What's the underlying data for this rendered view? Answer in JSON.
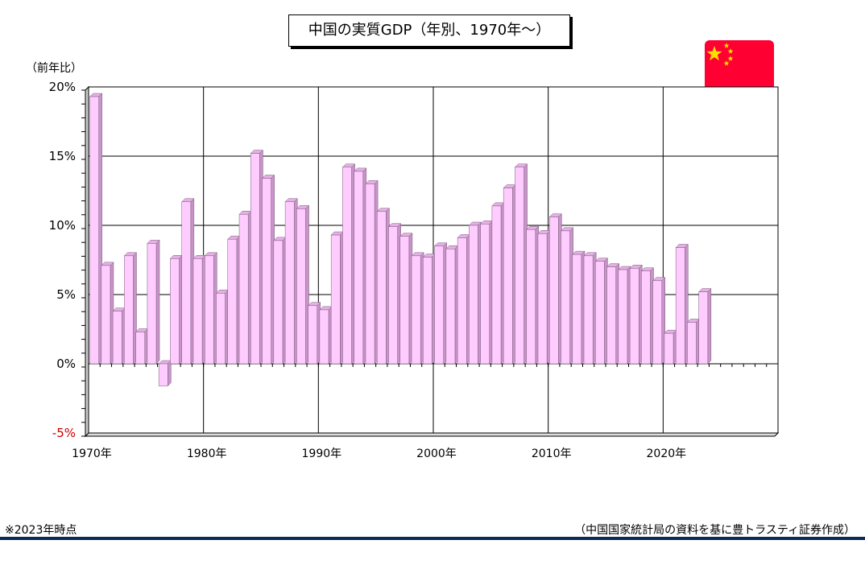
{
  "title": "中国の実質GDP（年別、1970年～）",
  "y_unit_label": "（前年比）",
  "note_left": "※2023年時点",
  "note_right": "（中国国家統計局の資料を基に豊トラスティ証券作成）",
  "flag_icon": "china-flag-icon",
  "colors": {
    "bar_front": "#ffccff",
    "bar_side": "#c895c8",
    "bar_top": "#e6b0e6",
    "negative_tick": "#cc0000",
    "flag_red": "#ff0033",
    "flag_star": "#ffdd00",
    "rule": "#0d2a55"
  },
  "chart_data": {
    "type": "bar",
    "title": "中国の実質GDP（年別、1970年～）",
    "ylabel": "（前年比）",
    "xlabel": "",
    "ylim": [
      -5,
      20
    ],
    "x_range": [
      1970,
      2030
    ],
    "grid": true,
    "categories": [
      1970,
      1971,
      1972,
      1973,
      1974,
      1975,
      1976,
      1977,
      1978,
      1979,
      1980,
      1981,
      1982,
      1983,
      1984,
      1985,
      1986,
      1987,
      1988,
      1989,
      1990,
      1991,
      1992,
      1993,
      1994,
      1995,
      1996,
      1997,
      1998,
      1999,
      2000,
      2001,
      2002,
      2003,
      2004,
      2005,
      2006,
      2007,
      2008,
      2009,
      2010,
      2011,
      2012,
      2013,
      2014,
      2015,
      2016,
      2017,
      2018,
      2019,
      2020,
      2021,
      2022,
      2023
    ],
    "values": [
      19.3,
      7.1,
      3.8,
      7.8,
      2.3,
      8.7,
      -1.6,
      7.6,
      11.7,
      7.6,
      7.8,
      5.1,
      9.0,
      10.8,
      15.2,
      13.4,
      8.9,
      11.7,
      11.2,
      4.2,
      3.9,
      9.3,
      14.2,
      13.9,
      13.0,
      11.0,
      9.9,
      9.2,
      7.8,
      7.7,
      8.5,
      8.3,
      9.1,
      10.0,
      10.1,
      11.4,
      12.7,
      14.2,
      9.7,
      9.4,
      10.6,
      9.6,
      7.9,
      7.8,
      7.4,
      7.0,
      6.8,
      6.9,
      6.7,
      6.0,
      2.2,
      8.4,
      3.0,
      5.2
    ],
    "y_ticks": [
      {
        "value": 20,
        "label": "20%"
      },
      {
        "value": 15,
        "label": "15%"
      },
      {
        "value": 10,
        "label": "10%"
      },
      {
        "value": 5,
        "label": "5%"
      },
      {
        "value": 0,
        "label": "0%"
      },
      {
        "value": -5,
        "label": "-5%"
      }
    ],
    "x_ticks": [
      {
        "value": 1970,
        "label": "1970年"
      },
      {
        "value": 1980,
        "label": "1980年"
      },
      {
        "value": 1990,
        "label": "1990年"
      },
      {
        "value": 2000,
        "label": "2000年"
      },
      {
        "value": 2010,
        "label": "2010年"
      },
      {
        "value": 2020,
        "label": "2020年"
      }
    ]
  }
}
